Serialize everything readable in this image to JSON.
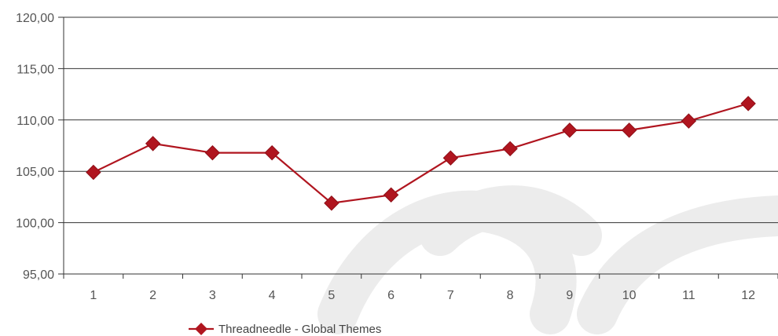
{
  "chart_data": {
    "type": "line",
    "x": [
      "1",
      "2",
      "3",
      "4",
      "5",
      "6",
      "7",
      "8",
      "9",
      "10",
      "11",
      "12"
    ],
    "series": [
      {
        "name": "Threadneedle - Global Themes",
        "values": [
          104.9,
          107.7,
          106.8,
          106.8,
          101.9,
          102.7,
          106.3,
          107.2,
          109.0,
          109.0,
          109.9,
          111.6
        ],
        "color": "#b0151f",
        "marker": "diamond"
      }
    ],
    "ylim": [
      95,
      120
    ],
    "yticks": [
      "95,00",
      "100,00",
      "105,00",
      "110,00",
      "115,00",
      "120,00"
    ],
    "grid": "horizontal",
    "legend_position": "bottom-left",
    "title": "",
    "xlabel": "",
    "ylabel": ""
  }
}
